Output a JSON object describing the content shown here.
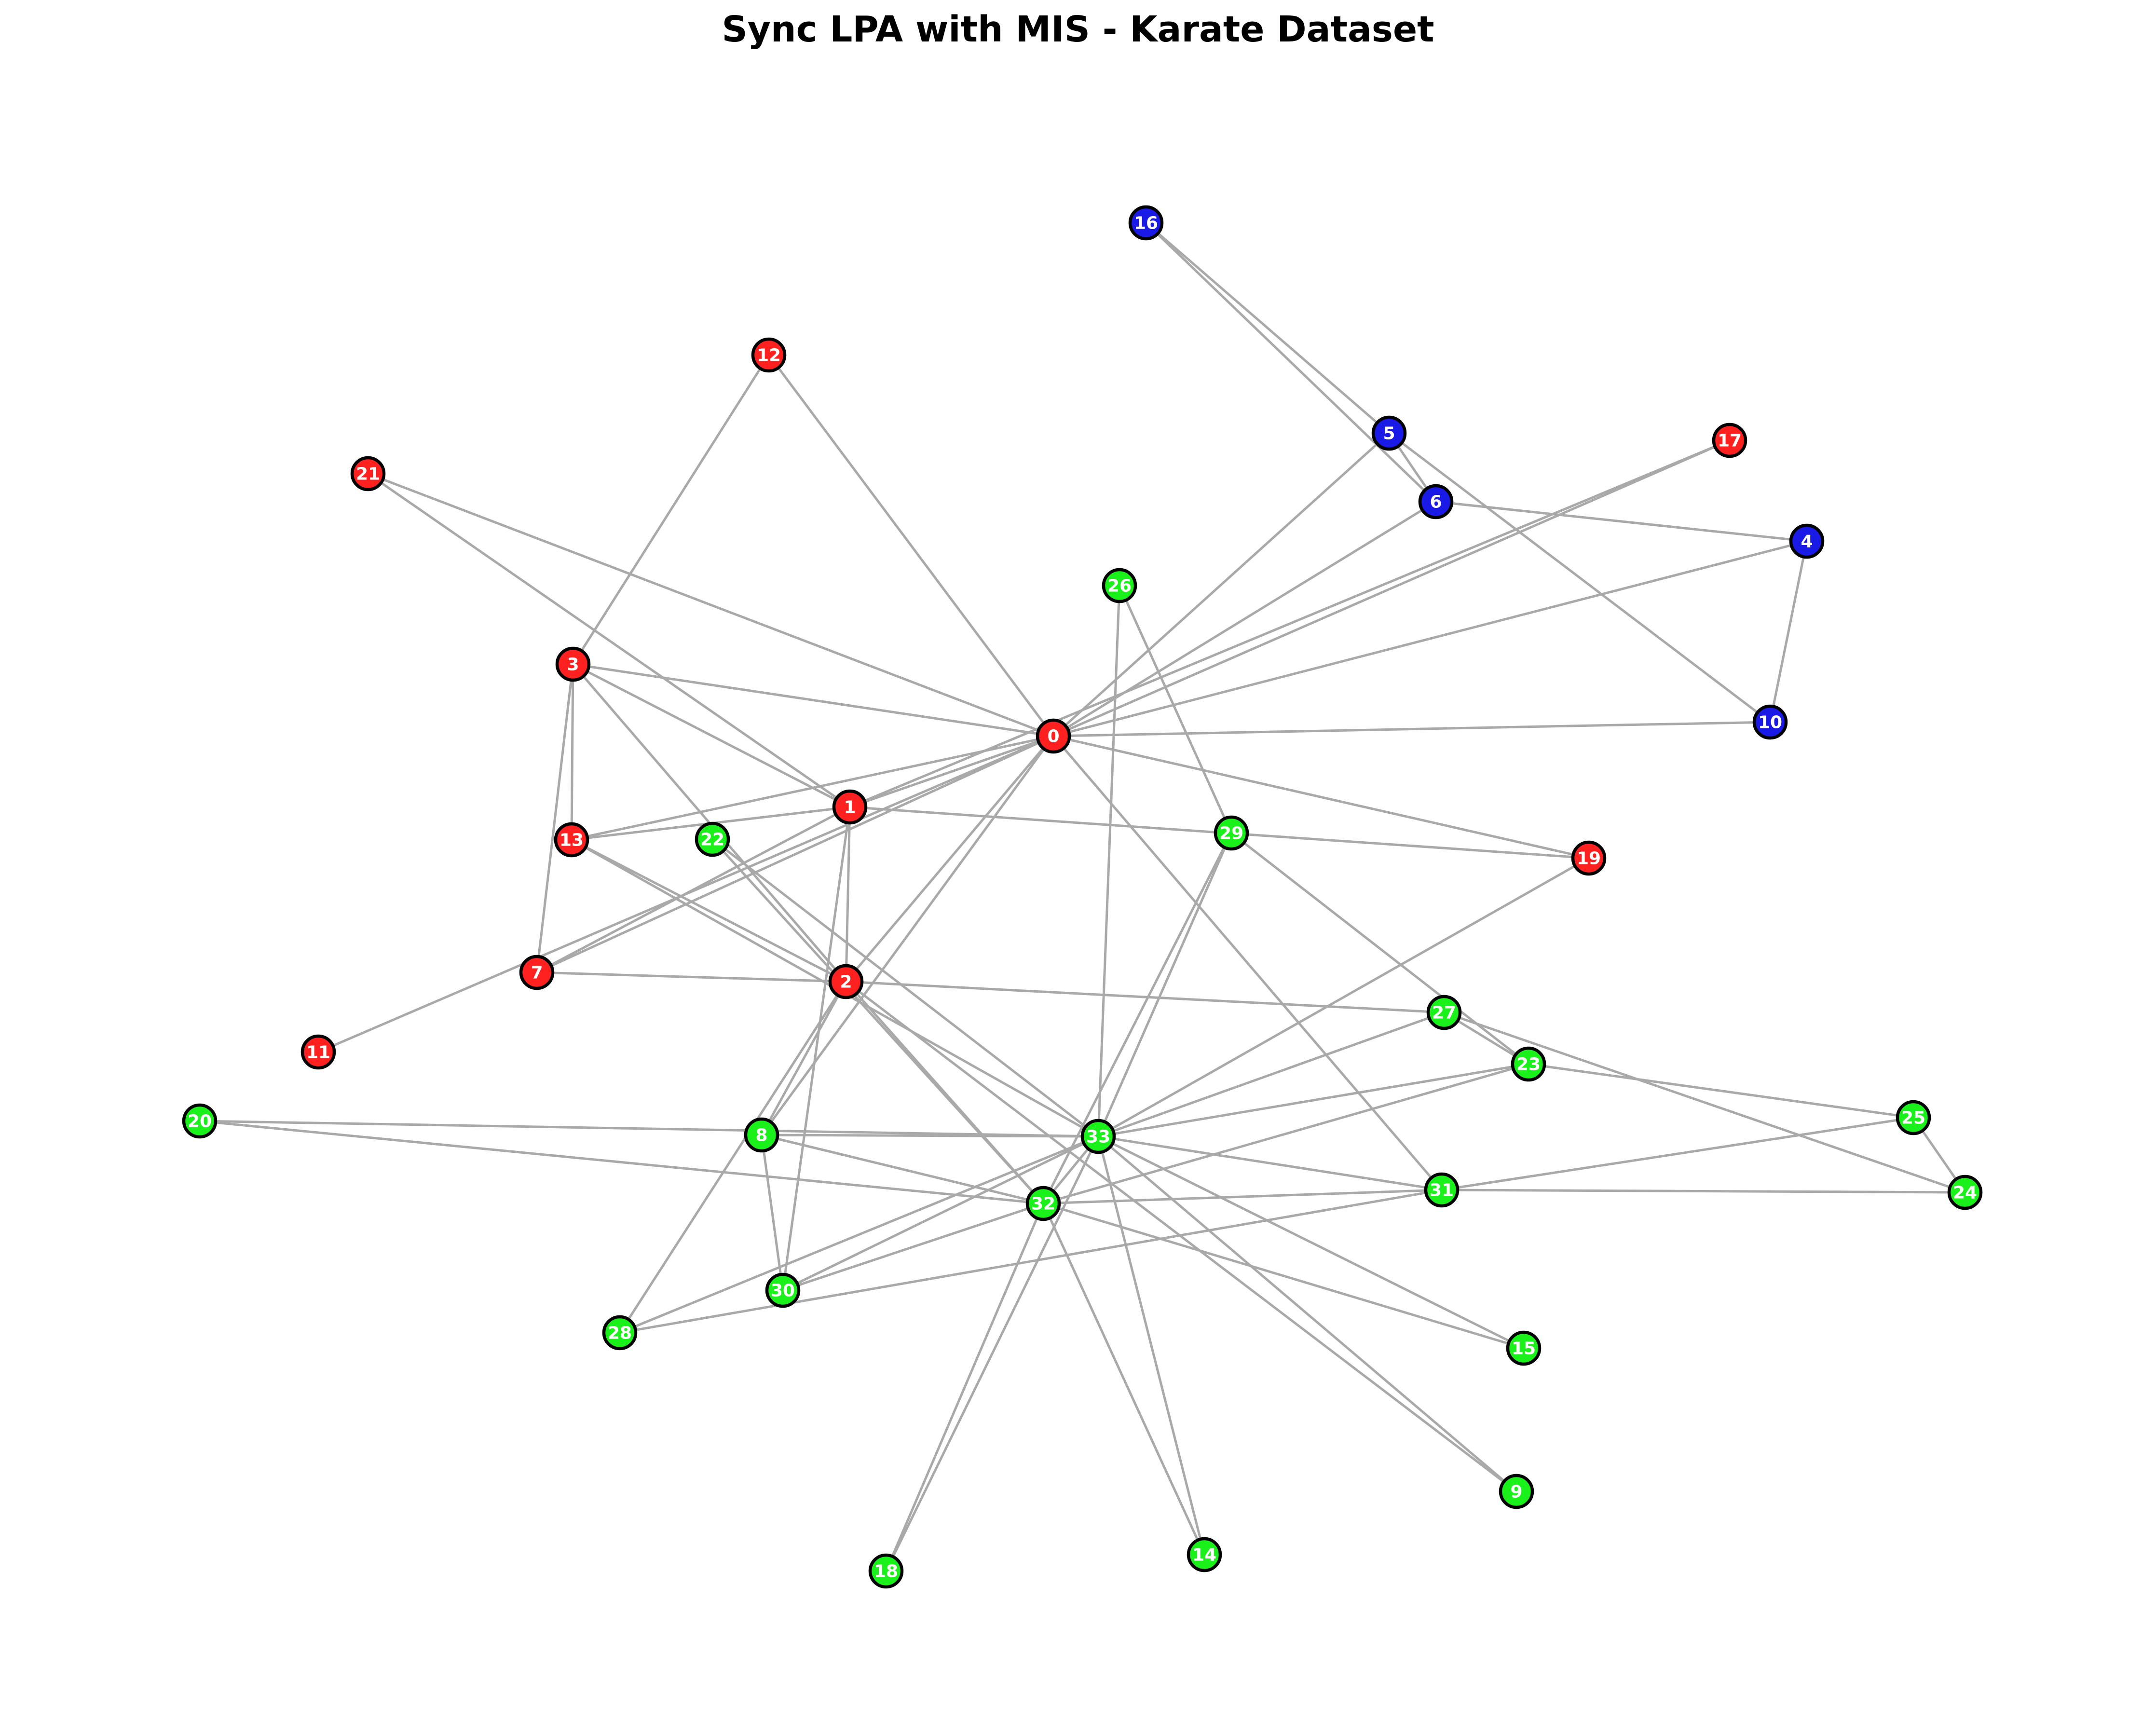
{
  "title": "Sync LPA with MIS - Karate Dataset",
  "colors": {
    "community_red": "#ff2020",
    "community_green": "#1af01a",
    "community_blue": "#1a1ae6",
    "edge": "#a9a9a9",
    "node_outline": "#000000",
    "label": "#ffffff"
  },
  "nodes": [
    {
      "id": "0",
      "community": "red"
    },
    {
      "id": "1",
      "community": "red"
    },
    {
      "id": "2",
      "community": "red"
    },
    {
      "id": "3",
      "community": "red"
    },
    {
      "id": "7",
      "community": "red"
    },
    {
      "id": "11",
      "community": "red"
    },
    {
      "id": "12",
      "community": "red"
    },
    {
      "id": "13",
      "community": "red"
    },
    {
      "id": "17",
      "community": "red"
    },
    {
      "id": "19",
      "community": "red"
    },
    {
      "id": "21",
      "community": "red"
    },
    {
      "id": "4",
      "community": "blue"
    },
    {
      "id": "5",
      "community": "blue"
    },
    {
      "id": "6",
      "community": "blue"
    },
    {
      "id": "10",
      "community": "blue"
    },
    {
      "id": "16",
      "community": "blue"
    },
    {
      "id": "8",
      "community": "green"
    },
    {
      "id": "9",
      "community": "green"
    },
    {
      "id": "14",
      "community": "green"
    },
    {
      "id": "15",
      "community": "green"
    },
    {
      "id": "18",
      "community": "green"
    },
    {
      "id": "20",
      "community": "green"
    },
    {
      "id": "22",
      "community": "green"
    },
    {
      "id": "23",
      "community": "green"
    },
    {
      "id": "24",
      "community": "green"
    },
    {
      "id": "25",
      "community": "green"
    },
    {
      "id": "26",
      "community": "green"
    },
    {
      "id": "27",
      "community": "green"
    },
    {
      "id": "28",
      "community": "green"
    },
    {
      "id": "29",
      "community": "green"
    },
    {
      "id": "30",
      "community": "green"
    },
    {
      "id": "31",
      "community": "green"
    },
    {
      "id": "32",
      "community": "green"
    },
    {
      "id": "33",
      "community": "green"
    }
  ],
  "edges": [
    [
      "0",
      "1"
    ],
    [
      "0",
      "2"
    ],
    [
      "0",
      "3"
    ],
    [
      "0",
      "4"
    ],
    [
      "0",
      "5"
    ],
    [
      "0",
      "6"
    ],
    [
      "0",
      "7"
    ],
    [
      "0",
      "8"
    ],
    [
      "0",
      "10"
    ],
    [
      "0",
      "11"
    ],
    [
      "0",
      "12"
    ],
    [
      "0",
      "13"
    ],
    [
      "0",
      "17"
    ],
    [
      "0",
      "19"
    ],
    [
      "0",
      "21"
    ],
    [
      "0",
      "31"
    ],
    [
      "1",
      "2"
    ],
    [
      "1",
      "3"
    ],
    [
      "1",
      "7"
    ],
    [
      "1",
      "13"
    ],
    [
      "1",
      "17"
    ],
    [
      "1",
      "19"
    ],
    [
      "1",
      "21"
    ],
    [
      "1",
      "30"
    ],
    [
      "2",
      "3"
    ],
    [
      "2",
      "7"
    ],
    [
      "2",
      "8"
    ],
    [
      "2",
      "9"
    ],
    [
      "2",
      "13"
    ],
    [
      "2",
      "27"
    ],
    [
      "2",
      "28"
    ],
    [
      "2",
      "32"
    ],
    [
      "3",
      "7"
    ],
    [
      "3",
      "12"
    ],
    [
      "3",
      "13"
    ],
    [
      "4",
      "6"
    ],
    [
      "4",
      "10"
    ],
    [
      "5",
      "6"
    ],
    [
      "5",
      "10"
    ],
    [
      "5",
      "16"
    ],
    [
      "6",
      "16"
    ],
    [
      "8",
      "30"
    ],
    [
      "8",
      "32"
    ],
    [
      "8",
      "33"
    ],
    [
      "9",
      "33"
    ],
    [
      "13",
      "33"
    ],
    [
      "14",
      "32"
    ],
    [
      "14",
      "33"
    ],
    [
      "15",
      "32"
    ],
    [
      "15",
      "33"
    ],
    [
      "18",
      "32"
    ],
    [
      "18",
      "33"
    ],
    [
      "19",
      "33"
    ],
    [
      "20",
      "32"
    ],
    [
      "20",
      "33"
    ],
    [
      "22",
      "32"
    ],
    [
      "22",
      "33"
    ],
    [
      "23",
      "25"
    ],
    [
      "23",
      "27"
    ],
    [
      "23",
      "29"
    ],
    [
      "23",
      "32"
    ],
    [
      "23",
      "33"
    ],
    [
      "24",
      "25"
    ],
    [
      "24",
      "27"
    ],
    [
      "24",
      "31"
    ],
    [
      "25",
      "31"
    ],
    [
      "26",
      "29"
    ],
    [
      "26",
      "33"
    ],
    [
      "27",
      "33"
    ],
    [
      "28",
      "31"
    ],
    [
      "28",
      "33"
    ],
    [
      "29",
      "32"
    ],
    [
      "29",
      "33"
    ],
    [
      "30",
      "32"
    ],
    [
      "30",
      "33"
    ],
    [
      "31",
      "32"
    ],
    [
      "31",
      "33"
    ],
    [
      "32",
      "33"
    ]
  ]
}
